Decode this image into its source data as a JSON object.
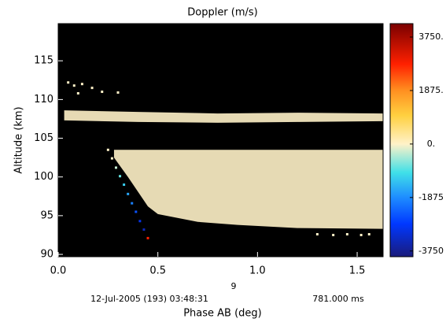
{
  "chart_data": {
    "type": "scatter",
    "title": "Doppler (m/s)",
    "x_label": "Phase AB (deg)",
    "y_label": "Altitude (km)",
    "xlim": [
      0,
      1.63
    ],
    "ylim": [
      89.7,
      119.8
    ],
    "xticks": [
      {
        "value": 0,
        "label": "0.0"
      },
      0.5,
      {
        "value": 1,
        "label": "1.0"
      },
      1.5
    ],
    "yticks": [
      90,
      95,
      100,
      105,
      110,
      115
    ],
    "background": "#000000",
    "clim": [
      -3950,
      4220
    ],
    "cticks": [
      {
        "value": 3750,
        "label": "3750."
      },
      {
        "value": 1875,
        "label": "1875."
      },
      {
        "value": 0,
        "label": "0."
      },
      -1875,
      -3750
    ],
    "colormap": [
      [
        -3950,
        "#1a1a7a"
      ],
      [
        -2800,
        "#0038ff"
      ],
      [
        -1875,
        "#1e8cff"
      ],
      [
        -1000,
        "#40e0e8"
      ],
      [
        0,
        "#fff2c8"
      ],
      [
        1000,
        "#ffd040"
      ],
      [
        1875,
        "#ff9020"
      ],
      [
        2800,
        "#ff2000"
      ],
      [
        4220,
        "#7a0000"
      ]
    ],
    "points": {
      "x": [
        0.25,
        0.27,
        0.29,
        0.31,
        0.33,
        0.35,
        0.37,
        0.39,
        0.41,
        0.43,
        0.45,
        0.05,
        0.08,
        0.12,
        0.17,
        0.1,
        0.22,
        0.3,
        1.3,
        1.38,
        1.45,
        1.52,
        1.56
      ],
      "y": [
        103.5,
        102.4,
        101.2,
        100.1,
        99.0,
        97.8,
        96.6,
        95.5,
        94.3,
        93.2,
        92.1,
        112.2,
        111.8,
        112.0,
        111.5,
        110.8,
        111.0,
        110.9,
        92.6,
        92.5,
        92.6,
        92.5,
        92.6
      ],
      "doppler": [
        0,
        0,
        -300,
        -800,
        -1200,
        -1600,
        -2000,
        -2500,
        -3000,
        -3400,
        2800,
        0,
        0,
        0,
        0,
        0,
        0,
        0,
        0,
        0,
        0,
        0,
        0
      ]
    },
    "regions": [
      {
        "x": [
          0.03,
          0.4,
          0.8,
          1.2,
          1.63,
          1.63,
          1.2,
          0.8,
          0.4,
          0.03
        ],
        "y": [
          108.6,
          108.4,
          108.2,
          108.3,
          108.2,
          107.2,
          107.1,
          107.0,
          107.1,
          107.3
        ],
        "doppler": 0
      },
      {
        "x": [
          0.28,
          1.63,
          1.63,
          1.2,
          0.9,
          0.7,
          0.5,
          0.45,
          0.35,
          0.28
        ],
        "y": [
          103.5,
          103.5,
          93.3,
          93.4,
          93.8,
          94.2,
          95.2,
          96.2,
          100,
          102.5
        ],
        "doppler": 0
      }
    ],
    "annotations": [
      "9",
      "12-Jul-2005 (193) 03:48:31",
      "781.000 ms"
    ]
  }
}
